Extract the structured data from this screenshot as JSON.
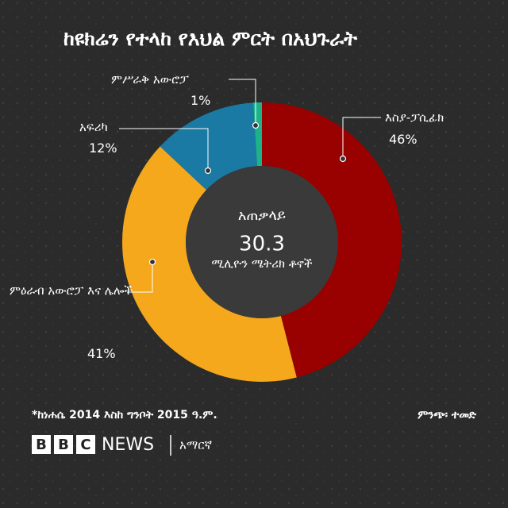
{
  "chart_data": {
    "type": "donut",
    "title": "ከዩክሬን የተላከ የእህል ምርት በአህጉራት",
    "categories": [
      "እስያ-ፓሲፊክ",
      "ምዕራብ አውሮፓ እና ሌሎች",
      "አፍሪካ",
      "ምሥራቅ አውሮፓ"
    ],
    "values": [
      46,
      41,
      12,
      1
    ],
    "value_labels": [
      "46%",
      "41%",
      "12%",
      "1%"
    ],
    "colors": [
      "#990000",
      "#f5a81c",
      "#1a7aa3",
      "#1db38a"
    ],
    "center_title": "አጠቃላይ",
    "total": 30.3,
    "center_unit": "ሚሊዮን ሜትሪክ ቶኖች",
    "footnote": "*ከነሐሴ 2014 እስከ ግንቦት 2015 ዓ.ም.",
    "source": "ምንጭ፡ ተመድ"
  },
  "brand": {
    "letters": [
      "B",
      "B",
      "C"
    ],
    "name": "NEWS",
    "service": "አማርኛ"
  }
}
